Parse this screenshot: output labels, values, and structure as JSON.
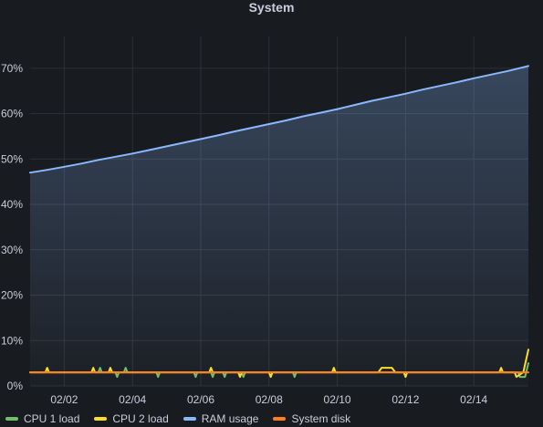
{
  "panel": {
    "title": "System"
  },
  "chart_data": {
    "type": "line",
    "title": "System",
    "xlabel": "",
    "ylabel": "",
    "x_range": [
      "2021-02-01",
      "2021-02-15.6"
    ],
    "ylim": [
      0,
      77
    ],
    "y_ticks": [
      "0%",
      "10%",
      "20%",
      "30%",
      "40%",
      "50%",
      "60%",
      "70%"
    ],
    "y_tick_values": [
      0,
      10,
      20,
      30,
      40,
      50,
      60,
      70
    ],
    "x_ticks": [
      "02/02",
      "02/04",
      "02/06",
      "02/08",
      "02/10",
      "02/12",
      "02/14"
    ],
    "x_tick_dates": [
      "2021-02-02",
      "2021-02-04",
      "2021-02-06",
      "2021-02-08",
      "2021-02-10",
      "2021-02-12",
      "2021-02-14"
    ],
    "grid": true,
    "legend_position": "bottom-left",
    "series": [
      {
        "name": "CPU 1 load",
        "color": "#73bf69",
        "x": [
          "2021-02-01",
          "2021-02-03",
          "2021-02-03.05",
          "2021-02-03.1",
          "2021-02-03.5",
          "2021-02-03.55",
          "2021-02-03.6",
          "2021-02-03.75",
          "2021-02-03.8",
          "2021-02-03.85",
          "2021-02-04.7",
          "2021-02-04.75",
          "2021-02-04.8",
          "2021-02-05.8",
          "2021-02-05.85",
          "2021-02-05.9",
          "2021-02-06.3",
          "2021-02-06.35",
          "2021-02-06.4",
          "2021-02-06.65",
          "2021-02-06.7",
          "2021-02-06.75",
          "2021-02-07.2",
          "2021-02-07.25",
          "2021-02-07.3",
          "2021-02-08.7",
          "2021-02-08.75",
          "2021-02-08.8",
          "2021-02-15.3",
          "2021-02-15.35",
          "2021-02-15.5",
          "2021-02-15.6"
        ],
        "values": [
          3,
          3,
          4,
          3,
          3,
          2,
          3,
          3,
          4,
          3,
          3,
          2,
          3,
          3,
          2,
          3,
          3,
          2,
          3,
          3,
          2,
          3,
          3,
          2,
          3,
          3,
          2,
          3,
          3,
          2,
          2,
          5
        ]
      },
      {
        "name": "CPU 2 load",
        "color": "#fade2a",
        "x": [
          "2021-02-01",
          "2021-02-01.45",
          "2021-02-01.5",
          "2021-02-01.55",
          "2021-02-02.8",
          "2021-02-02.85",
          "2021-02-02.9",
          "2021-02-03.3",
          "2021-02-03.35",
          "2021-02-03.4",
          "2021-02-06.25",
          "2021-02-06.3",
          "2021-02-06.35",
          "2021-02-07.1",
          "2021-02-07.15",
          "2021-02-07.2",
          "2021-02-08.0",
          "2021-02-08.05",
          "2021-02-08.1",
          "2021-02-09.85",
          "2021-02-09.9",
          "2021-02-09.95",
          "2021-02-11.2",
          "2021-02-11.3",
          "2021-02-11.6",
          "2021-02-11.7",
          "2021-02-11.95",
          "2021-02-12.0",
          "2021-02-12.05",
          "2021-02-14.75",
          "2021-02-14.8",
          "2021-02-14.85",
          "2021-02-15.2",
          "2021-02-15.25",
          "2021-02-15.45",
          "2021-02-15.6"
        ],
        "values": [
          3,
          3,
          4,
          3,
          3,
          4,
          3,
          3,
          4,
          3,
          3,
          4,
          3,
          3,
          2,
          3,
          3,
          2,
          3,
          3,
          4,
          3,
          3,
          4,
          4,
          3,
          3,
          2,
          3,
          3,
          4,
          3,
          3,
          2,
          3,
          8
        ]
      },
      {
        "name": "RAM usage",
        "color": "#8ab8ff",
        "fill": true,
        "x": [
          "2021-02-01",
          "2021-02-01.5",
          "2021-02-02",
          "2021-02-02.5",
          "2021-02-03",
          "2021-02-03.5",
          "2021-02-04",
          "2021-02-04.5",
          "2021-02-05",
          "2021-02-05.5",
          "2021-02-06",
          "2021-02-06.5",
          "2021-02-07",
          "2021-02-07.5",
          "2021-02-08",
          "2021-02-08.5",
          "2021-02-09",
          "2021-02-09.5",
          "2021-02-10",
          "2021-02-10.5",
          "2021-02-11",
          "2021-02-11.5",
          "2021-02-12",
          "2021-02-12.5",
          "2021-02-13",
          "2021-02-13.5",
          "2021-02-14",
          "2021-02-14.5",
          "2021-02-15",
          "2021-02-15.6"
        ],
        "values": [
          47,
          47.6,
          48.3,
          49,
          49.8,
          50.5,
          51.2,
          52,
          52.8,
          53.6,
          54.4,
          55.2,
          56.1,
          56.9,
          57.7,
          58.5,
          59.4,
          60.2,
          61,
          61.9,
          62.8,
          63.6,
          64.4,
          65.3,
          66.1,
          66.9,
          67.8,
          68.6,
          69.4,
          70.5
        ]
      },
      {
        "name": "System disk",
        "color": "#ff7f1f",
        "x": [
          "2021-02-01",
          "2021-02-15.6"
        ],
        "values": [
          3,
          3
        ]
      }
    ]
  }
}
